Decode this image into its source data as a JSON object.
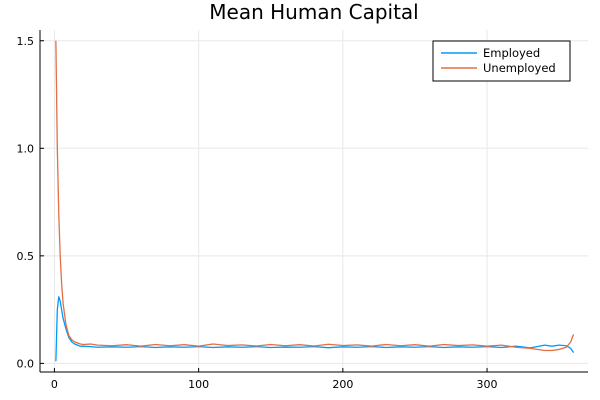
{
  "chart_data": {
    "type": "line",
    "title": "Mean Human Capital",
    "xlabel": "",
    "ylabel": "",
    "xlim": [
      -10,
      370
    ],
    "ylim": [
      -0.04,
      1.55
    ],
    "xticks": [
      0,
      100,
      200,
      300
    ],
    "yticks": [
      0.0,
      0.5,
      1.0,
      1.5
    ],
    "xtick_labels": [
      "0",
      "100",
      "200",
      "300"
    ],
    "ytick_labels": [
      "0.0",
      "0.5",
      "1.0",
      "1.5"
    ],
    "grid": true,
    "legend_position": "top-right",
    "series": [
      {
        "name": "Employed",
        "color": "#009af9",
        "x": [
          1,
          2,
          3,
          4,
          5,
          6,
          8,
          10,
          12,
          14,
          16,
          18,
          20,
          25,
          30,
          40,
          50,
          60,
          70,
          80,
          90,
          100,
          110,
          120,
          130,
          140,
          150,
          160,
          170,
          180,
          190,
          200,
          210,
          220,
          230,
          240,
          250,
          260,
          270,
          280,
          290,
          300,
          310,
          320,
          330,
          340,
          345,
          350,
          355,
          358,
          360
        ],
        "y": [
          0.01,
          0.25,
          0.31,
          0.29,
          0.25,
          0.21,
          0.16,
          0.12,
          0.1,
          0.09,
          0.085,
          0.08,
          0.08,
          0.078,
          0.075,
          0.077,
          0.075,
          0.078,
          0.074,
          0.077,
          0.075,
          0.078,
          0.074,
          0.077,
          0.075,
          0.078,
          0.074,
          0.076,
          0.075,
          0.078,
          0.073,
          0.077,
          0.075,
          0.078,
          0.074,
          0.077,
          0.075,
          0.078,
          0.074,
          0.077,
          0.075,
          0.078,
          0.074,
          0.08,
          0.072,
          0.085,
          0.08,
          0.085,
          0.082,
          0.07,
          0.05
        ]
      },
      {
        "name": "Unemployed",
        "color": "#e26f46",
        "x": [
          1,
          2,
          3,
          4,
          5,
          6,
          8,
          10,
          12,
          14,
          16,
          18,
          20,
          25,
          30,
          40,
          50,
          60,
          70,
          80,
          90,
          100,
          110,
          120,
          130,
          140,
          150,
          160,
          170,
          180,
          190,
          200,
          210,
          220,
          230,
          240,
          250,
          260,
          270,
          280,
          290,
          300,
          310,
          320,
          330,
          340,
          345,
          350,
          355,
          358,
          360
        ],
        "y": [
          1.5,
          1.0,
          0.7,
          0.5,
          0.37,
          0.28,
          0.18,
          0.13,
          0.11,
          0.1,
          0.095,
          0.09,
          0.088,
          0.09,
          0.085,
          0.082,
          0.087,
          0.08,
          0.088,
          0.082,
          0.087,
          0.08,
          0.09,
          0.083,
          0.086,
          0.081,
          0.088,
          0.082,
          0.087,
          0.081,
          0.089,
          0.083,
          0.086,
          0.08,
          0.088,
          0.082,
          0.087,
          0.08,
          0.088,
          0.083,
          0.086,
          0.08,
          0.085,
          0.075,
          0.07,
          0.06,
          0.06,
          0.065,
          0.075,
          0.1,
          0.135
        ]
      }
    ]
  }
}
